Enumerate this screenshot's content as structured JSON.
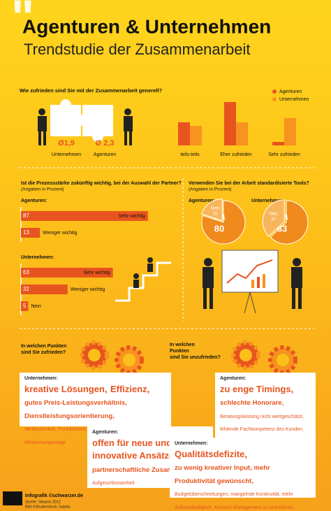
{
  "header": {
    "title": "Agenturen & Unternehmen",
    "subtitle": "Trendstudie der Zusammenarbeit"
  },
  "chart_data": [
    {
      "type": "bar",
      "title": "Wie zufrieden sind Sie mit der Zusammenarbeit generell?",
      "categories": [
        "teils-teils",
        "Eher zufrieden",
        "Sehr zufrieden"
      ],
      "series": [
        {
          "name": "Agenturen",
          "color": "#e8541e",
          "values": [
            33,
            62,
            5
          ]
        },
        {
          "name": "Unternehmen",
          "color": "#f7931e",
          "values": [
            28,
            33,
            39
          ]
        }
      ],
      "ylim": [
        0,
        70
      ],
      "legend": "top-right",
      "grades": [
        {
          "name": "Unternehmen",
          "label": "Ø1,9"
        },
        {
          "name": "Agenturen",
          "label": "Ø 2,3"
        }
      ]
    },
    {
      "type": "hbar",
      "title": "Ist die Prozessstärke zukünftig wichtig, bei der Auswahl der Partner?",
      "subtitle": "(Angaben in Prozent)",
      "color": "#e8541e",
      "xlim": [
        0,
        100
      ],
      "groups": [
        {
          "name": "Agenturen:",
          "categories": [
            "Sehr wichtig",
            "Weniger wichtig"
          ],
          "values": [
            87,
            13
          ]
        },
        {
          "name": "Unternehmen:",
          "categories": [
            "Sehr wichtig",
            "Weniger wichtig",
            "Nein"
          ],
          "values": [
            63,
            32,
            5
          ]
        }
      ]
    },
    {
      "type": "pie",
      "title": "Verwenden Sie bei der Arbeit standardisierte Tools?",
      "subtitle": "(Angaben in Prozent)",
      "colors": [
        "#f08a1c",
        "#f9b55e"
      ],
      "pies": [
        {
          "name": "Agenturen:",
          "categories": [
            "Ja",
            "Nein"
          ],
          "values": [
            80,
            20
          ]
        },
        {
          "name": "Unternehmen:",
          "categories": [
            "Ja",
            "Nein"
          ],
          "values": [
            63,
            37
          ]
        }
      ]
    }
  ],
  "satisfied": {
    "question": [
      "In welchen Punkten",
      "sind Sie zufrieden?"
    ],
    "boxes": [
      {
        "label": "Unternehmen:",
        "main": [
          "kreative Lösungen,",
          "Effizienz,"
        ],
        "secondary": [
          "gutes Preis-Leistungsverhältnis,",
          "Dienstleistungsorientierung,"
        ],
        "details": [
          "Verlässlichkeit, Pünktlichkeit, gute Betreuung,",
          "kurze Abstimmungswege"
        ]
      },
      {
        "label": "Agenturen:",
        "main": [
          "offen für neue und innovative Ansätze,"
        ],
        "secondary": [
          "partnerschaftliche Zusammenarbeit,"
        ],
        "details": [
          "Aufgeschlossenheit"
        ]
      }
    ]
  },
  "dissatisfied": {
    "question": [
      "In welchen",
      "Punkten",
      "sind Sie unzufrieden?"
    ],
    "boxes": [
      {
        "label": "Agenturen:",
        "main": [
          "zu enge Timings,"
        ],
        "secondary": [
          "schlechte Honorare,"
        ],
        "details": [
          "Beratungsleistung nicht wertgeschätzt, fehlende Fachkompetenz des Kunden, Kunde ist beratungsresistent, kein partnerschaftliches Miteinander"
        ]
      },
      {
        "label": "Unternehmen:",
        "main": [
          "Qualitätsdefizite,"
        ],
        "secondary": [
          "zu wenig kreativer Input, mehr Produktivität gewünscht,"
        ],
        "details": [
          "Budgetüberschreitungen, mangelnde Kontinuität, mehr Selbstständigkeit, Account Management zu unerfahren, geringe Onlinekompetenz"
        ]
      }
    ]
  },
  "footer": {
    "credit": "Infografik ©schwarzer.de",
    "source": "Quelle: Skopos 2012",
    "image": "Bild ©Shutterstock: hvijeta"
  }
}
